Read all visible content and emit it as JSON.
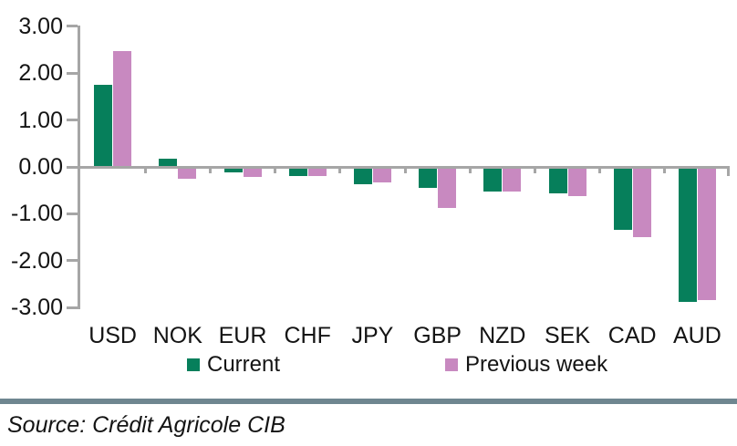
{
  "chart_data": {
    "type": "bar",
    "title": "",
    "xlabel": "",
    "ylabel": "",
    "categories": [
      "USD",
      "NOK",
      "EUR",
      "CHF",
      "JPY",
      "GBP",
      "NZD",
      "SEK",
      "CAD",
      "AUD"
    ],
    "series": [
      {
        "name": "Current",
        "color": "#067f5b",
        "values": [
          1.75,
          0.18,
          -0.12,
          -0.2,
          -0.37,
          -0.45,
          -0.52,
          -0.57,
          -1.35,
          -2.88
        ]
      },
      {
        "name": "Previous week",
        "color": "#c889c0",
        "values": [
          2.48,
          -0.26,
          -0.21,
          -0.2,
          -0.33,
          -0.88,
          -0.52,
          -0.62,
          -1.5,
          -2.85
        ]
      }
    ],
    "ylim": [
      -3,
      3
    ],
    "y_ticks": [
      "3.00",
      "2.00",
      "1.00",
      "0.00",
      "-1.00",
      "-2.00",
      "-3.00"
    ],
    "grid": false,
    "legend_position": "bottom"
  },
  "legend": {
    "current_label": "Current",
    "previous_label": "Previous week"
  },
  "footer": {
    "source_text": "Source: Crédit Agricole CIB"
  },
  "colors": {
    "current": "#067f5b",
    "previous": "#c889c0",
    "axis": "#a6a6a6",
    "divider": "#6f8690",
    "text": "#141414"
  }
}
